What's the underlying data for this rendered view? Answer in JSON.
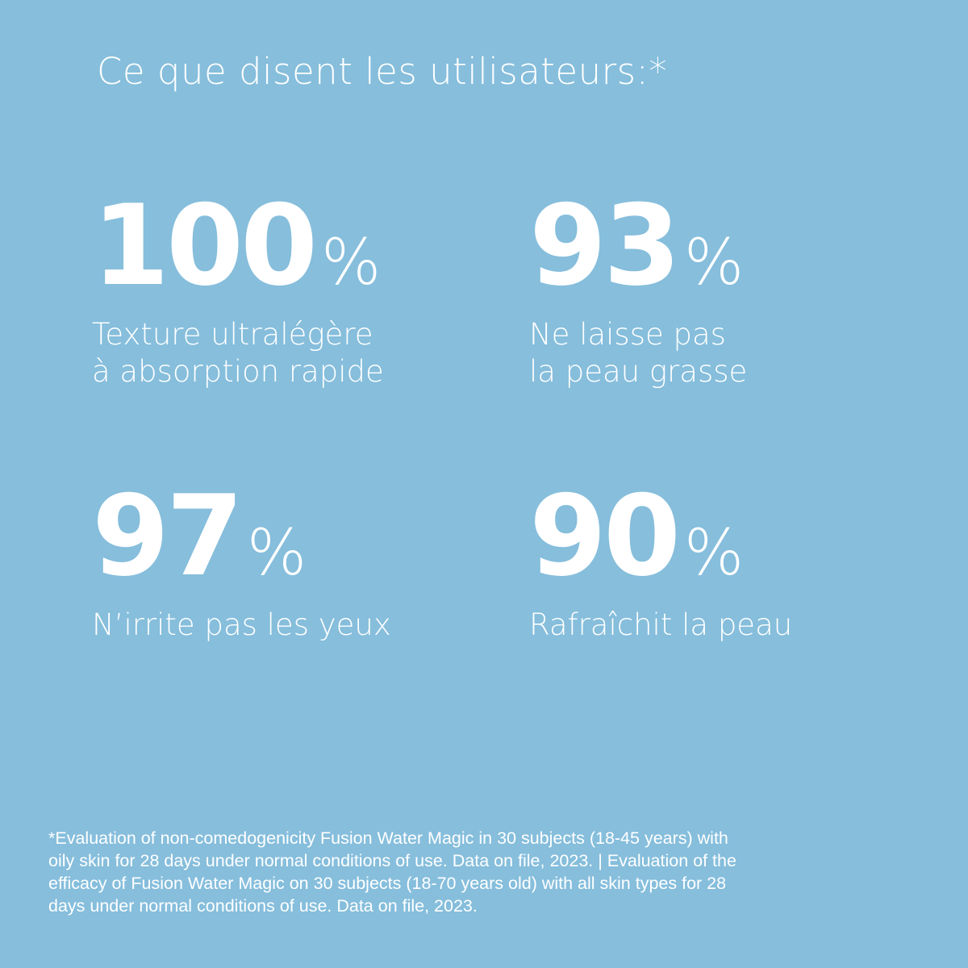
{
  "background_color": "#86bedc",
  "text_color": "#ffffff",
  "title": "Ce que disent les utilisateurs:*",
  "stats": [
    {
      "value": "100",
      "unit": "%",
      "label_lines": [
        "Texture ultralégère",
        "à absorption rapide"
      ]
    },
    {
      "value": "93",
      "unit": "%",
      "label_lines": [
        "Ne laisse pas",
        "la peau grasse"
      ]
    },
    {
      "value": "97",
      "unit": "%",
      "label_lines": [
        "N’irrite pas les yeux"
      ]
    },
    {
      "value": "90",
      "unit": "%",
      "label_lines": [
        "Rafraîchit la peau"
      ]
    }
  ],
  "footnote_lines": [
    "*Evaluation of non-comedogenicity Fusion Water Magic in 30 subjects (18-45 years) with",
    "oily skin for 28 days under normal conditions of use. Data on file, 2023. | Evaluation of the",
    "efficacy of Fusion Water Magic on 30 subjects (18-70 years old) with all skin types for 28",
    "days under normal conditions of use. Data on file, 2023."
  ]
}
